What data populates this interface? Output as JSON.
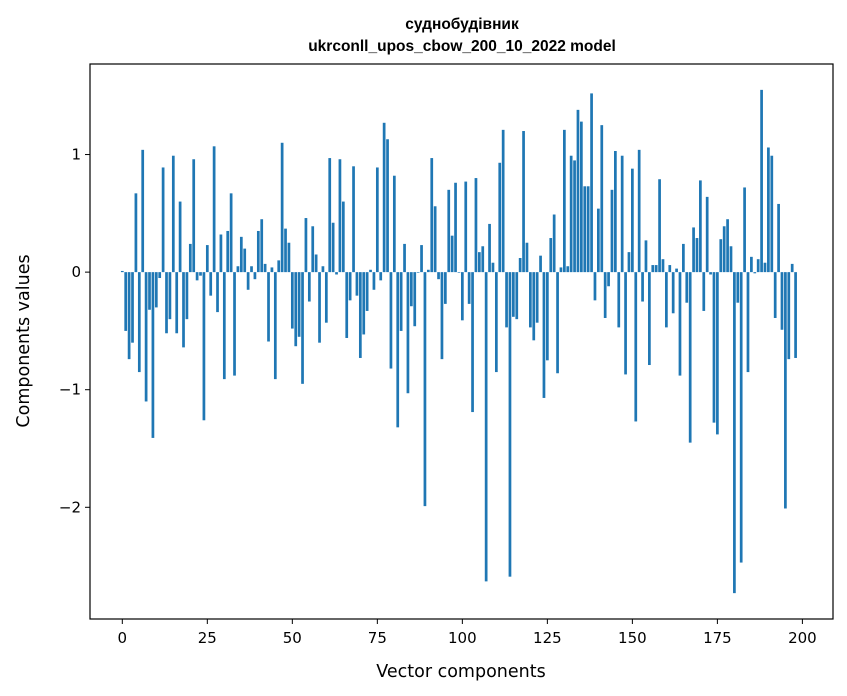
{
  "chart_data": {
    "type": "bar",
    "title": [
      "суднобудівник",
      "ukrconll_upos_cbow_200_10_2022 model"
    ],
    "xlabel": "Vector components",
    "ylabel": "Components values",
    "xlim": [
      -9.5,
      209
    ],
    "ylim": [
      -2.95,
      1.77
    ],
    "xticks": [
      0,
      25,
      50,
      75,
      100,
      125,
      150,
      175,
      200
    ],
    "yticks": [
      -2,
      -1,
      0,
      1
    ],
    "ytick_labels": [
      "−2",
      "−1",
      "0",
      "1"
    ],
    "grid": false,
    "legend": null,
    "values": [
      0.01,
      -0.5,
      -0.74,
      -0.6,
      0.67,
      -0.85,
      1.04,
      -1.1,
      -0.32,
      -1.41,
      -0.3,
      -0.05,
      0.89,
      -0.52,
      -0.4,
      0.99,
      -0.52,
      0.6,
      -0.64,
      -0.4,
      0.24,
      0.96,
      -0.07,
      -0.03,
      -1.26,
      0.23,
      -0.2,
      1.07,
      -0.34,
      0.32,
      -0.91,
      0.35,
      0.67,
      -0.88,
      0.05,
      0.3,
      0.2,
      -0.15,
      0.05,
      -0.06,
      0.35,
      0.45,
      0.07,
      -0.59,
      0.04,
      -0.91,
      0.1,
      1.1,
      0.37,
      0.25,
      -0.48,
      -0.63,
      -0.55,
      -0.95,
      0.46,
      -0.25,
      0.39,
      0.15,
      -0.6,
      0.05,
      -0.43,
      0.97,
      0.42,
      -0.02,
      0.96,
      0.6,
      -0.56,
      -0.24,
      0.9,
      -0.2,
      -0.73,
      -0.53,
      -0.33,
      0.02,
      -0.15,
      0.89,
      -0.07,
      1.27,
      1.13,
      -0.82,
      0.82,
      -1.32,
      -0.5,
      0.24,
      -1.03,
      -0.29,
      -0.46,
      0.0,
      0.23,
      -1.99,
      0.02,
      0.97,
      0.56,
      -0.06,
      -0.74,
      -0.27,
      0.7,
      0.31,
      0.76,
      0.0,
      -0.41,
      0.77,
      -0.27,
      -1.19,
      0.8,
      0.17,
      0.22,
      -2.63,
      0.41,
      0.08,
      -0.85,
      0.93,
      1.21,
      -0.47,
      -2.59,
      -0.38,
      -0.4,
      0.12,
      1.2,
      0.25,
      -0.47,
      -0.58,
      -0.43,
      0.14,
      -1.07,
      -0.75,
      0.29,
      0.49,
      -0.86,
      0.04,
      1.21,
      0.05,
      0.99,
      0.95,
      1.38,
      1.28,
      0.73,
      0.73,
      1.52,
      -0.24,
      0.54,
      1.25,
      -0.39,
      -0.12,
      0.7,
      1.03,
      -0.47,
      0.99,
      -0.87,
      0.17,
      0.88,
      -1.27,
      1.04,
      -0.25,
      0.27,
      -0.79,
      0.06,
      0.06,
      0.79,
      0.11,
      -0.47,
      0.06,
      -0.35,
      0.03,
      -0.88,
      0.24,
      -0.26,
      -1.45,
      0.38,
      0.29,
      0.78,
      -0.33,
      0.64,
      -0.02,
      -1.28,
      -1.38,
      0.28,
      0.39,
      0.45,
      0.22,
      -2.73,
      -0.26,
      -2.47,
      0.72,
      -0.85,
      0.13,
      -0.01,
      0.11,
      1.55,
      0.08,
      1.06,
      0.99,
      -0.39,
      0.58,
      -0.49,
      -2.01,
      -0.74,
      0.07,
      -0.73
    ]
  }
}
